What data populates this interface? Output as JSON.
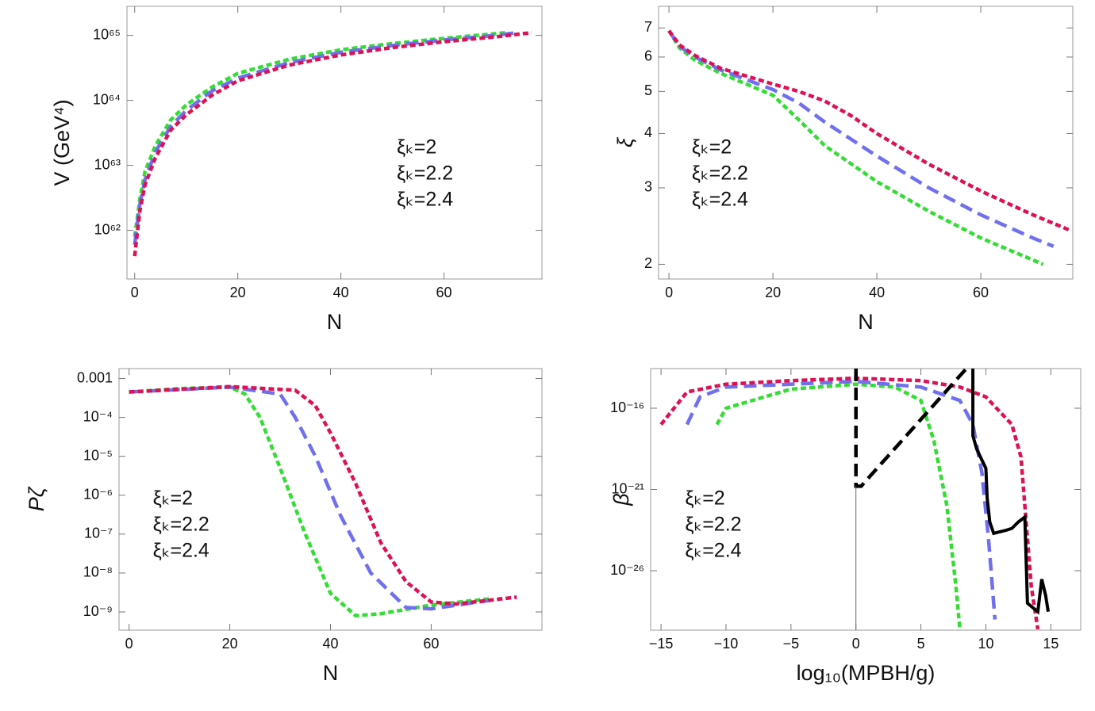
{
  "chart_data": [
    {
      "type": "line",
      "ylabel": "V (GeV⁴)",
      "xlabel": "N",
      "ylog": true,
      "legend": "center-right",
      "xlim": [
        -1.5,
        79
      ],
      "ylim": [
        1.78e+61,
        2.8e+65
      ],
      "xticks": [
        0,
        20,
        40,
        60
      ],
      "yticks": [
        {
          "value": 1e+62,
          "label": "10⁶²"
        },
        {
          "value": 1e+63,
          "label": "10⁶³"
        },
        {
          "value": 1e+64,
          "label": "10⁶⁴"
        },
        {
          "value": 1e+65,
          "label": "10⁶⁵"
        }
      ],
      "series": [
        {
          "name": "ξₖ=2",
          "color": "#33dd33",
          "style": "dotted",
          "x": [
            0,
            1,
            2,
            4,
            7,
            10,
            15,
            20,
            30,
            40,
            50,
            60,
            72
          ],
          "values": [
            8e+61,
            3e+62,
            8e+62,
            2e+63,
            5e+63,
            8.5e+63,
            1.6e+64,
            2.6e+64,
            4.3e+64,
            6e+64,
            7.5e+64,
            9e+64,
            1.1e+65
          ]
        },
        {
          "name": "ξₖ=2.2",
          "color": "#7070ee",
          "style": "dashed",
          "x": [
            0,
            1,
            2,
            4,
            7,
            10,
            15,
            20,
            30,
            40,
            50,
            60,
            70,
            74
          ],
          "values": [
            6e+61,
            2.5e+62,
            6e+62,
            1.6e+63,
            4e+63,
            7e+63,
            1.4e+64,
            2.2e+64,
            3.8e+64,
            5.5e+64,
            7e+64,
            8.5e+64,
            1e+65,
            1.1e+65
          ]
        },
        {
          "name": "ξₖ=2.4",
          "color": "#dd1155",
          "style": "dotted",
          "x": [
            0,
            1,
            2,
            4,
            7,
            10,
            15,
            20,
            30,
            40,
            50,
            60,
            70,
            77
          ],
          "values": [
            4e+61,
            2e+62,
            5e+62,
            1.3e+63,
            3.5e+63,
            6e+63,
            1.2e+64,
            2e+64,
            3.5e+64,
            5e+64,
            6.5e+64,
            8e+64,
            9.5e+64,
            1.1e+65
          ]
        }
      ]
    },
    {
      "type": "line",
      "ylabel": "ξ",
      "xlabel": "N",
      "ylog": true,
      "legend": "center-left",
      "xlim": [
        -2,
        77.7
      ],
      "ylim": [
        1.85,
        7.85
      ],
      "xticks": [
        0,
        20,
        40,
        60
      ],
      "yticks": [
        2,
        3,
        4,
        5,
        6,
        7
      ],
      "series": [
        {
          "name": "ξₖ=2",
          "color": "#33dd33",
          "style": "dotted",
          "x": [
            0,
            2,
            5,
            10,
            20,
            25,
            30,
            40,
            50,
            60,
            72
          ],
          "values": [
            6.9,
            6.3,
            5.9,
            5.5,
            4.9,
            4.3,
            3.75,
            3.1,
            2.65,
            2.3,
            2.0
          ]
        },
        {
          "name": "ξₖ=2.2",
          "color": "#7070ee",
          "style": "dashed",
          "x": [
            0,
            2,
            5,
            10,
            20,
            25,
            30,
            40,
            50,
            60,
            70,
            74
          ],
          "values": [
            6.9,
            6.35,
            6.0,
            5.6,
            5.05,
            4.7,
            4.25,
            3.55,
            3.0,
            2.6,
            2.3,
            2.2
          ]
        },
        {
          "name": "ξₖ=2.4",
          "color": "#dd1155",
          "style": "dotted",
          "x": [
            0,
            2,
            5,
            10,
            20,
            25,
            30,
            35,
            40,
            50,
            60,
            70,
            77
          ],
          "values": [
            6.9,
            6.4,
            6.05,
            5.65,
            5.2,
            5.0,
            4.75,
            4.4,
            4.0,
            3.4,
            2.95,
            2.6,
            2.4
          ]
        }
      ]
    },
    {
      "type": "line",
      "ylabel": "Pζ",
      "xlabel": "N",
      "ylog": true,
      "legend": "lower-left",
      "xlim": [
        -2,
        82
      ],
      "ylim": [
        3.4e-10,
        0.0018
      ],
      "xticks": [
        0,
        20,
        40,
        60
      ],
      "yticks": [
        0.001,
        {
          "value": 0.0001,
          "label": "10⁻⁴"
        },
        {
          "value": 1e-05,
          "label": "10⁻⁵"
        },
        {
          "value": 1e-06,
          "label": "10⁻⁶"
        },
        {
          "value": 1e-07,
          "label": "10⁻⁷"
        },
        {
          "value": 1e-08,
          "label": "10⁻⁸"
        },
        {
          "value": 1e-09,
          "label": "10⁻⁹"
        }
      ],
      "series": [
        {
          "name": "ξₖ=2",
          "color": "#33dd33",
          "style": "dotted",
          "x": [
            0,
            10,
            20,
            23,
            26,
            30,
            35,
            40,
            45,
            50,
            60,
            72
          ],
          "values": [
            0.00045,
            0.00055,
            0.0006,
            0.0004,
            0.0001,
            5e-06,
            1e-07,
            3e-09,
            8e-10,
            9e-10,
            1.5e-09,
            2.2e-09
          ]
        },
        {
          "name": "ξₖ=2.2",
          "color": "#7070ee",
          "style": "dashed",
          "x": [
            0,
            20,
            30,
            33,
            37,
            42,
            48,
            55,
            60,
            74
          ],
          "values": [
            0.00045,
            0.0006,
            0.0004,
            0.0001,
            1e-05,
            3e-07,
            1e-08,
            1.3e-09,
            1.2e-09,
            2.2e-09
          ]
        },
        {
          "name": "ξₖ=2.4",
          "color": "#dd1155",
          "style": "dotted",
          "x": [
            0,
            20,
            33,
            37,
            40,
            45,
            50,
            55,
            60,
            65,
            77
          ],
          "values": [
            0.00045,
            0.00062,
            0.0005,
            0.0002,
            4e-05,
            2e-06,
            6e-08,
            6e-09,
            1.8e-09,
            1.6e-09,
            2.4e-09
          ]
        }
      ]
    },
    {
      "type": "line",
      "ylabel": "β",
      "xlabel": "log₁₀(MPBH/g)",
      "ylog": true,
      "legend": "lower-left",
      "xlim": [
        -15.8,
        17.3
      ],
      "ylim": [
        2.2e-30,
        2.75e-14
      ],
      "xticks": [
        {
          "value": -15,
          "label": "−15"
        },
        {
          "value": -10,
          "label": "−10"
        },
        {
          "value": -5,
          "label": "−5"
        },
        0,
        5,
        10,
        15
      ],
      "yticks": [
        {
          "value": 1e-16,
          "label": "10⁻¹⁶"
        },
        {
          "value": 1e-21,
          "label": "10⁻²¹"
        },
        {
          "value": 1e-26,
          "label": "10⁻²⁶"
        }
      ],
      "series": [
        {
          "name": "ξₖ=2",
          "color": "#33dd33",
          "style": "dotted",
          "x": [
            -10.7,
            -10,
            -5,
            0,
            3,
            5,
            6,
            7,
            7.7,
            8
          ],
          "values": [
            1e-17,
            1e-16,
            1.5e-15,
            3e-15,
            2e-15,
            3e-16,
            1e-18,
            1e-22,
            1e-27,
            2.5e-30
          ]
        },
        {
          "name": "ξₖ=2.2",
          "color": "#7070ee",
          "style": "dashed",
          "x": [
            -13,
            -12,
            -10,
            0,
            5,
            8,
            9,
            9.7,
            10.2,
            10.7
          ],
          "values": [
            1e-17,
            5e-16,
            2e-15,
            4.5e-15,
            2e-15,
            3e-16,
            1e-17,
            1e-20,
            1e-24,
            1e-29
          ]
        },
        {
          "name": "ξₖ=2.4",
          "color": "#dd1155",
          "style": "dotted",
          "x": [
            -15,
            -13,
            -10,
            -5,
            0,
            5,
            8,
            10,
            12,
            12.7,
            13,
            13.5,
            14
          ],
          "values": [
            1e-17,
            1e-15,
            3e-15,
            5e-15,
            7e-15,
            5e-15,
            2e-15,
            5e-16,
            1e-17,
            1e-19,
            1e-22,
            1e-27,
            2.5e-30
          ]
        },
        {
          "color": "#000000",
          "style": "solid",
          "x": [
            9,
            9,
            9.3,
            10,
            10.1,
            10.3,
            10.6,
            11.5,
            12,
            12.5,
            13,
            13.2,
            14,
            14.3,
            14.6,
            14.8
          ],
          "values": [
            2.75e-14,
            2e-18,
            3e-19,
            2e-20,
            3e-22,
            1e-23,
            2e-24,
            3e-24,
            4e-24,
            1e-23,
            2e-23,
            1e-28,
            3e-29,
            3e-27,
            3e-28,
            3e-29
          ]
        },
        {
          "color": "#000000",
          "style": "dashed",
          "x": [
            0,
            0,
            0.4,
            8.5
          ],
          "values": [
            2.75e-14,
            1.6e-21,
            1.6e-21,
            2.75e-14
          ]
        },
        {
          "color": "#666666",
          "style": "thin",
          "x": [
            0,
            0
          ],
          "values": [
            1.6e-21,
            2.2e-30
          ]
        }
      ]
    }
  ]
}
